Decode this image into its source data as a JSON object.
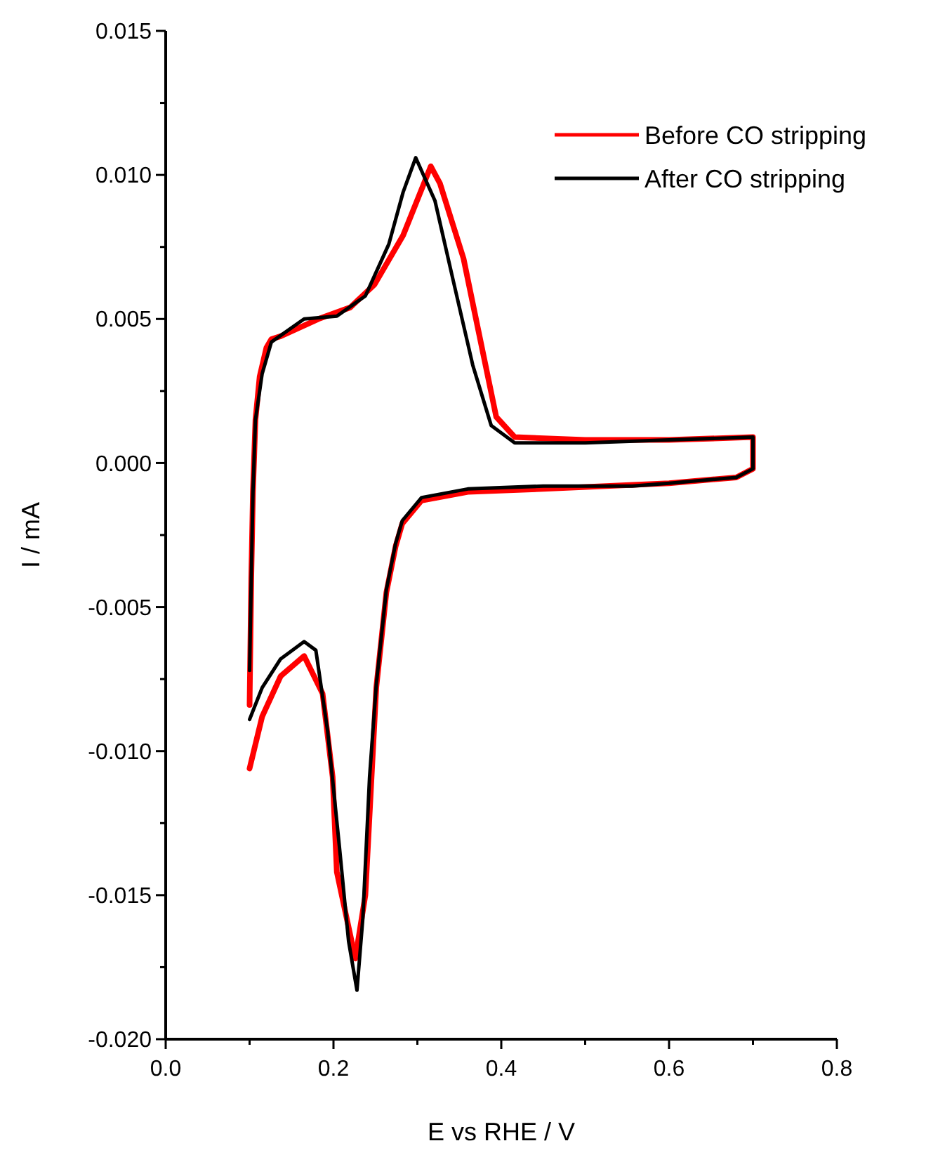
{
  "chart_data": {
    "type": "line",
    "xlabel": "E vs RHE / V",
    "ylabel": "I / mA",
    "xlim": [
      0,
      0.8
    ],
    "ylim": [
      -0.02,
      0.015
    ],
    "xticks": [
      {
        "value": 0,
        "label": "0.0"
      },
      {
        "value": 0.1,
        "label": null
      },
      {
        "value": 0.2,
        "label": "0.2"
      },
      {
        "value": 0.3,
        "label": null
      },
      {
        "value": 0.4,
        "label": "0.4"
      },
      {
        "value": 0.5,
        "label": null
      },
      {
        "value": 0.6,
        "label": "0.6"
      },
      {
        "value": 0.7,
        "label": null
      },
      {
        "value": 0.8,
        "label": "0.8"
      }
    ],
    "yticks": [
      {
        "value": -0.02,
        "label": "-0.020"
      },
      {
        "value": -0.0175,
        "label": null
      },
      {
        "value": -0.015,
        "label": "-0.015"
      },
      {
        "value": -0.0125,
        "label": null
      },
      {
        "value": -0.01,
        "label": "-0.010"
      },
      {
        "value": -0.0075,
        "label": null
      },
      {
        "value": -0.005,
        "label": "-0.005"
      },
      {
        "value": -0.0025,
        "label": null
      },
      {
        "value": 0,
        "label": "0.000"
      },
      {
        "value": 0.0025,
        "label": null
      },
      {
        "value": 0.005,
        "label": "0.005"
      },
      {
        "value": 0.0075,
        "label": null
      },
      {
        "value": 0.01,
        "label": "0.010"
      },
      {
        "value": 0.0125,
        "label": null
      },
      {
        "value": 0.015,
        "label": "0.015"
      }
    ],
    "grid": false,
    "legend": "top right",
    "marker": "none",
    "line_style": "solid",
    "series": [
      {
        "name": "Before CO stripping",
        "color": "#ff0000",
        "x": [
          0.1,
          0.102,
          0.104,
          0.107,
          0.112,
          0.12,
          0.126,
          0.137,
          0.182,
          0.22,
          0.249,
          0.283,
          0.316,
          0.327,
          0.355,
          0.372,
          0.394,
          0.416,
          0.5,
          0.6,
          0.7,
          0.7,
          0.68,
          0.6,
          0.45,
          0.36,
          0.305,
          0.282,
          0.274,
          0.263,
          0.251,
          0.238,
          0.226,
          0.204,
          0.199,
          0.187,
          0.165,
          0.137,
          0.115,
          0.1
        ],
        "values": [
          -0.0084,
          -0.004,
          -0.001,
          0.0015,
          0.003,
          0.004,
          0.0043,
          0.0044,
          0.005,
          0.0054,
          0.0062,
          0.0079,
          0.0103,
          0.0097,
          0.0071,
          0.0047,
          0.0016,
          0.0009,
          0.0008,
          0.0008,
          0.0009,
          -0.0002,
          -0.0005,
          -0.0007,
          -0.0009,
          -0.001,
          -0.0013,
          -0.0021,
          -0.0029,
          -0.0045,
          -0.0078,
          -0.015,
          -0.0172,
          -0.0142,
          -0.0109,
          -0.008,
          -0.0067,
          -0.0074,
          -0.0088,
          -0.0106
        ]
      },
      {
        "name": "After CO stripping",
        "color": "#000000",
        "x": [
          0.1,
          0.102,
          0.104,
          0.107,
          0.115,
          0.126,
          0.165,
          0.204,
          0.238,
          0.266,
          0.283,
          0.298,
          0.321,
          0.343,
          0.366,
          0.388,
          0.416,
          0.5,
          0.6,
          0.7,
          0.7,
          0.68,
          0.6,
          0.556,
          0.45,
          0.36,
          0.305,
          0.282,
          0.274,
          0.263,
          0.251,
          0.243,
          0.235,
          0.228,
          0.218,
          0.207,
          0.193,
          0.179,
          0.165,
          0.137,
          0.115,
          0.1
        ],
        "values": [
          -0.0072,
          -0.004,
          -0.001,
          0.0015,
          0.0031,
          0.0042,
          0.005,
          0.0051,
          0.0058,
          0.0076,
          0.0094,
          0.0106,
          0.0091,
          0.0063,
          0.0034,
          0.0013,
          0.0007,
          0.0007,
          0.0008,
          0.0009,
          -0.0002,
          -0.0005,
          -0.0007,
          -0.0008,
          -0.0008,
          -0.0009,
          -0.0012,
          -0.002,
          -0.0028,
          -0.0044,
          -0.0077,
          -0.0109,
          -0.0158,
          -0.0183,
          -0.0166,
          -0.0133,
          -0.0093,
          -0.0065,
          -0.0062,
          -0.0068,
          -0.0078,
          -0.0089
        ]
      }
    ]
  }
}
